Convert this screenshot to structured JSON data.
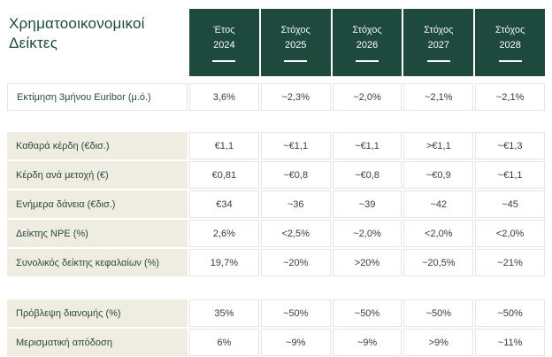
{
  "title": {
    "line1": "Χρηματοοικονομικοί",
    "line2": "Δείκτες"
  },
  "colors": {
    "header_bg": "#1d4a3c",
    "label_bg": "#efece2",
    "cell_border": "#e5e4df",
    "title_color": "#1d4a3c"
  },
  "chart_data": {
    "type": "table",
    "title": "Χρηματοοικονομικοί Δείκτες",
    "columns": [
      {
        "label": "Έτος",
        "year": "2024"
      },
      {
        "label": "Στόχος",
        "year": "2025"
      },
      {
        "label": "Στόχος",
        "year": "2026"
      },
      {
        "label": "Στόχος",
        "year": "2027"
      },
      {
        "label": "Στόχος",
        "year": "2028"
      }
    ],
    "groups": [
      {
        "rows": [
          {
            "label": "Εκτίμηση 3μήνου Euribor (μ.ό.)",
            "label_style": "plain",
            "values": [
              "3,6%",
              "~2,3%",
              "~2,0%",
              "~2,1%",
              "~2,1%"
            ]
          }
        ]
      },
      {
        "rows": [
          {
            "label": "Καθαρά κέρδη (€δισ.)",
            "label_style": "shaded",
            "values": [
              "€1,1",
              "~€1,1",
              "~€1,1",
              ">€1,1",
              "~€1,3"
            ]
          },
          {
            "label": "Κέρδη ανά μετοχή (€)",
            "label_style": "shaded",
            "values": [
              "€0,81",
              "~€0,8",
              "~€0,8",
              "~€0,9",
              "~€1,1"
            ]
          },
          {
            "label": "Ενήμερα δάνεια (€δισ.)",
            "label_style": "shaded",
            "values": [
              "€34",
              "~36",
              "~39",
              "~42",
              "~45"
            ]
          },
          {
            "label": "Δείκτης NPE (%)",
            "label_style": "shaded",
            "values": [
              "2,6%",
              "<2,5%",
              "~2,0%",
              "<2,0%",
              "<2,0%"
            ]
          },
          {
            "label": "Συνολικός δείκτης κεφαλαίων (%)",
            "label_style": "shaded",
            "values": [
              "19,7%",
              "~20%",
              ">20%",
              "~20,5%",
              "~21%"
            ]
          }
        ]
      },
      {
        "rows": [
          {
            "label": "Πρόβλεψη διανομής (%)",
            "label_style": "shaded",
            "values": [
              "35%",
              "~50%",
              "~50%",
              "~50%",
              "~50%"
            ]
          },
          {
            "label": "Μερισματική απόδοση",
            "label_style": "shaded",
            "values": [
              "6%",
              "~9%",
              "~9%",
              ">9%",
              "~11%"
            ]
          }
        ]
      }
    ]
  }
}
